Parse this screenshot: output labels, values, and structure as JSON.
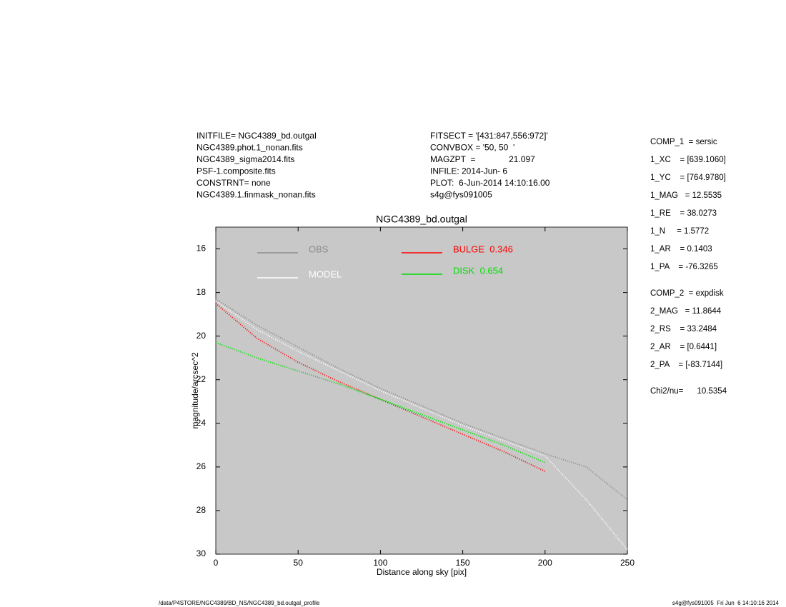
{
  "header": {
    "left": [
      "INITFILE= NGC4389_bd.outgal",
      "NGC4389.phot.1_nonan.fits",
      "NGC4389_sigma2014.fits",
      "PSF-1.composite.fits",
      "CONSTRNT= none",
      "NGC4389.1.finmask_nonan.fits"
    ],
    "middle": [
      "FITSECT = '[431:847,556:972]'",
      "CONVBOX = '50, 50  '",
      "MAGZPT  =              21.097",
      "INFILE: 2014-Jun- 6",
      "PLOT:  6-Jun-2014 14:10:16.00",
      "s4g@fys091005"
    ],
    "right": [
      "COMP_1  = sersic",
      "1_XC    = [639.1060]",
      "1_YC    = [764.9780]",
      "1_MAG   = 12.5535",
      "1_RE    = 38.0273",
      "1_N     = 1.5772",
      "1_AR    = 0.1403",
      "1_PA    = -76.3265",
      "COMP_2  = expdisk",
      "2_MAG   = 11.8644",
      "2_RS    = 33.2484",
      "2_AR    = [0.6441]",
      "2_PA    = [-83.7144]",
      "Chi2/nu=      10.5354"
    ]
  },
  "footer": {
    "left": "/data/P4STORE/NGC4389/BD_NS/NGC4389_bd.outgal_profile",
    "right": "s4g@fys091005  Fri Jun  6 14:10:16 2014"
  },
  "chart_data": {
    "type": "line",
    "title": "NGC4389_bd.outgal",
    "x_label": "Distance along sky [pix]",
    "y_label": "magnitude/arcsec^2",
    "x": [
      0,
      25,
      50,
      75,
      100,
      125,
      150,
      175,
      200,
      225,
      250
    ],
    "series": [
      {
        "name": "OBS",
        "color": "#8c8c8c",
        "values": [
          18.3,
          19.5,
          20.5,
          21.5,
          22.4,
          23.2,
          24.0,
          24.7,
          25.4,
          26.0,
          27.5
        ]
      },
      {
        "name": "MODEL",
        "color": "#ffffff",
        "values": [
          18.4,
          19.7,
          20.7,
          21.6,
          22.5,
          23.3,
          24.1,
          24.8,
          25.5,
          27.5,
          29.8
        ]
      },
      {
        "name": "BULGE  0.346",
        "color": "#ff0000",
        "values": [
          18.5,
          20.1,
          21.2,
          22.1,
          22.9,
          23.7,
          24.5,
          25.3,
          26.2,
          null,
          null
        ]
      },
      {
        "name": "DISK  0.654",
        "color": "#00dd00",
        "values": [
          20.3,
          21.0,
          21.6,
          22.2,
          22.9,
          23.6,
          24.3,
          25.0,
          25.8,
          null,
          null
        ]
      }
    ],
    "xlim": [
      0,
      250
    ],
    "ylim": [
      30,
      15
    ],
    "xticks": [
      0,
      50,
      100,
      150,
      200,
      250
    ],
    "yticks": [
      16,
      18,
      20,
      22,
      24,
      26,
      28,
      30
    ],
    "background": "#c8c8c8"
  }
}
